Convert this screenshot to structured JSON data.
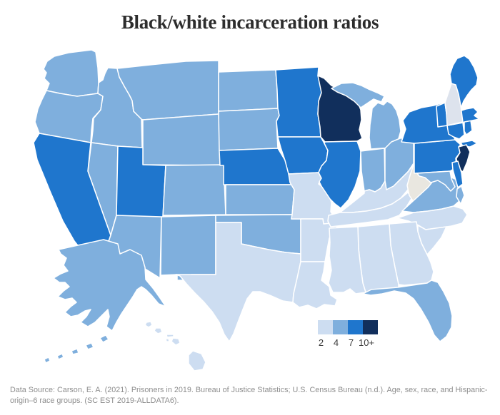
{
  "title": "Black/white incarceration ratios",
  "legend": {
    "labels": [
      "2",
      "4",
      "7",
      "10+"
    ],
    "colors": [
      "#cdddf1",
      "#7fafdd",
      "#1f76cd",
      "#112f5c"
    ]
  },
  "footer": {
    "line1": "Data Source: Carson, E. A. (2021). Prisoners in 2019. Bureau of Justice Statistics; U.S. Census Bureau (n.d.). Age, sex, race, and Hispanic-",
    "line2": "origin–6 race groups. (SC EST 2019-ALLDATA6)."
  },
  "chart_data": {
    "type": "choropleth",
    "region": "USA states",
    "title": "Black/white incarceration ratios",
    "legend_thresholds": [
      "2",
      "4",
      "7",
      "10+"
    ],
    "legend_position": "bottom-right",
    "bin_colors": {
      "2": "#cdddf1",
      "4": "#7fafdd",
      "7": "#1f76cd",
      "10+": "#112f5c",
      "pale-gray": "#dde3ed",
      "pale-warm-gray": "#e9e7e0"
    },
    "state_bins": {
      "WA": "4",
      "OR": "4",
      "ID": "4",
      "MT": "4",
      "WY": "4",
      "NV": "4",
      "AZ": "4",
      "NM": "4",
      "CO": "4",
      "ND": "4",
      "SD": "4",
      "KS": "4",
      "OK": "4",
      "MI": "4",
      "IN": "4",
      "OH": "4",
      "VA": "4",
      "FL": "4",
      "MD": "4",
      "AK": "4",
      "CA": "7",
      "UT": "7",
      "NE": "7",
      "MN": "7",
      "IA": "7",
      "IL": "7",
      "PA": "7",
      "NY": "7",
      "ME": "7",
      "VT": "7",
      "MA": "7",
      "RI": "7",
      "CT": "7",
      "DE": "7",
      "WI": "10+",
      "NJ": "10+",
      "TX": "2",
      "MO": "2",
      "AR": "2",
      "LA": "2",
      "MS": "2",
      "AL": "2",
      "GA": "2",
      "SC": "2",
      "NC": "2",
      "TN": "2",
      "KY": "2",
      "HI": "2",
      "NH": "pale-gray",
      "WV": "pale-warm-gray"
    }
  }
}
